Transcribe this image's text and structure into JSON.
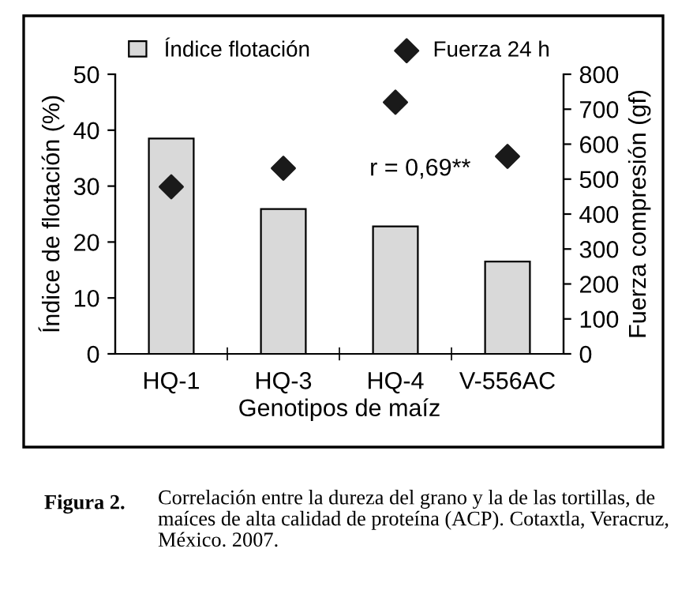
{
  "chart_data": {
    "type": "bar",
    "categories": [
      "HQ-1",
      "HQ-3",
      "HQ-4",
      "V-556AC"
    ],
    "series": [
      {
        "name": "Índice flotación",
        "color": "#d9d9d9",
        "values": [
          38.5,
          25.9,
          22.8,
          16.5
        ]
      },
      {
        "name": "Fuerza 24 h",
        "type": "scatter",
        "axis": "y2",
        "color": "#1a1a1a",
        "marker": "diamond",
        "values": [
          478,
          531,
          720,
          565
        ]
      }
    ],
    "xlabel": "Genotipos de maíz",
    "ylabel": "Índice de flotación (%)",
    "y2label": "Fuerza compresión (gf)",
    "ylim": [
      0,
      50
    ],
    "yticks": [
      0,
      10,
      20,
      30,
      40,
      50
    ],
    "y2lim": [
      0,
      800
    ],
    "y2ticks": [
      0,
      100,
      200,
      300,
      400,
      500,
      600,
      700,
      800
    ],
    "legend": "top",
    "grid": false,
    "annotations": [
      {
        "text": "r = 0,69**"
      },
      "Figura 2.",
      "Correlación entre la dureza del grano y la de las tortillas, de maíces de alta calidad de proteína (ACP). Cotaxtla, Veracruz, México. 2007."
    ]
  }
}
